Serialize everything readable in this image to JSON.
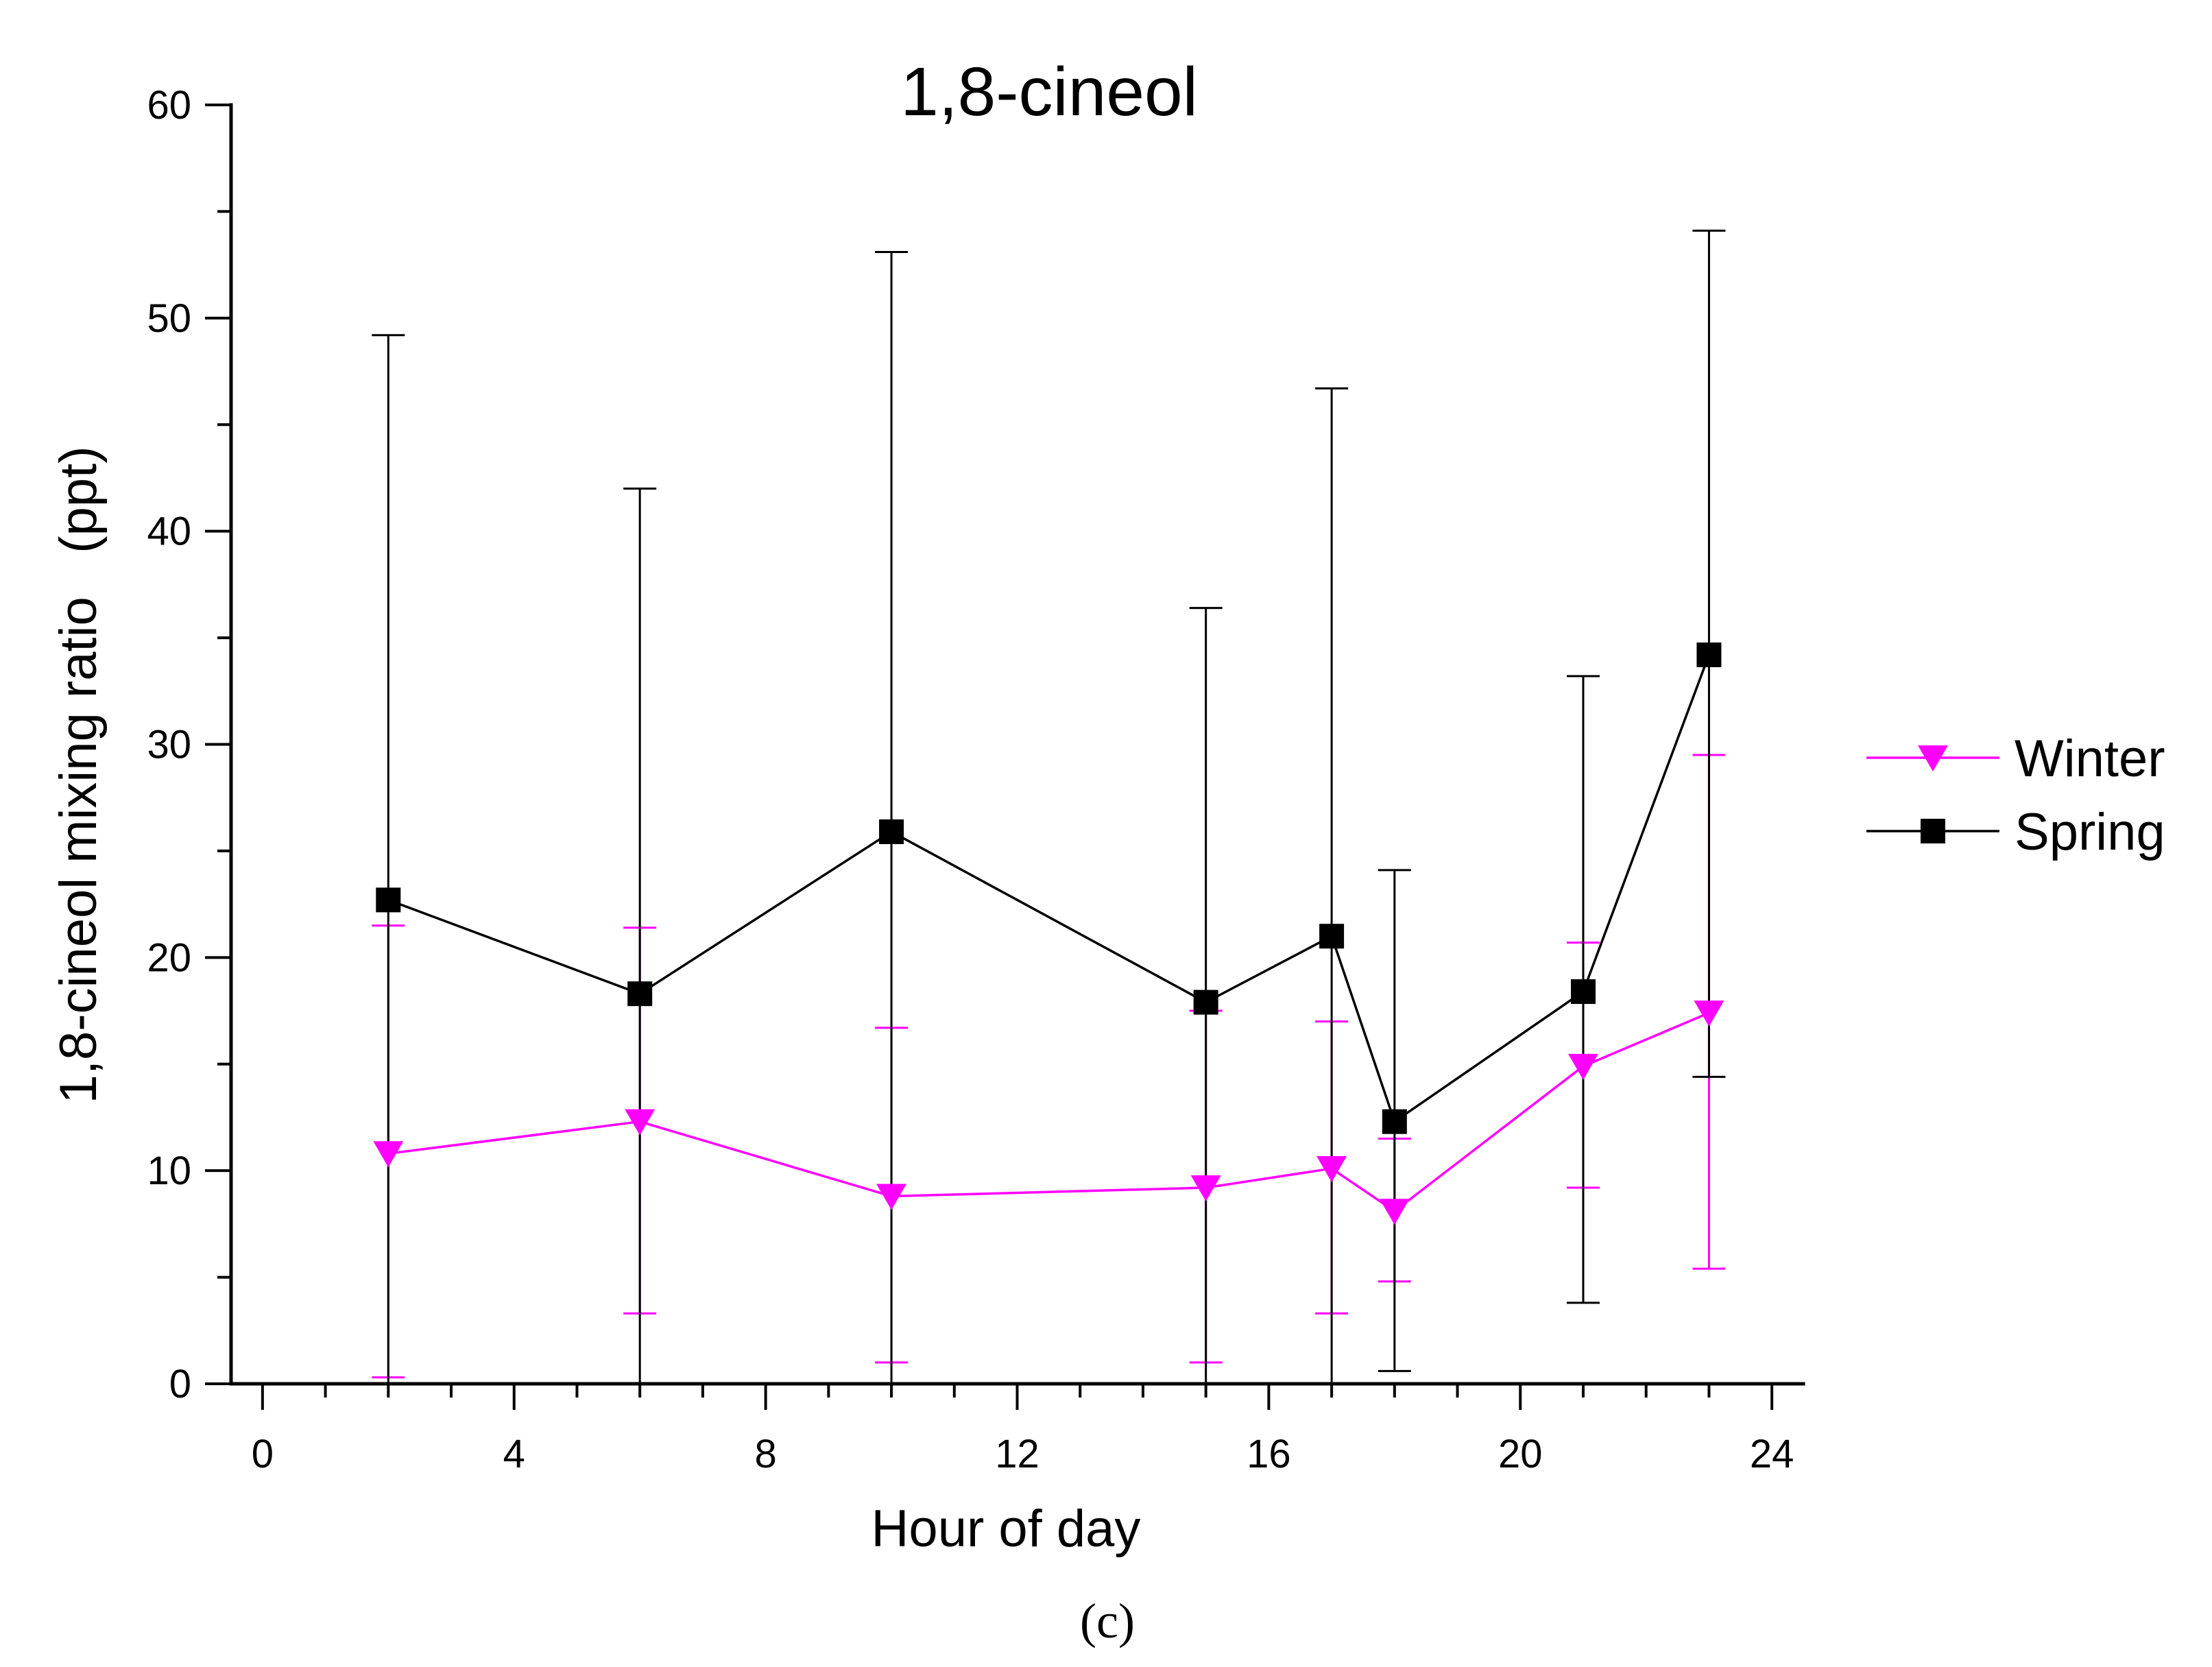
{
  "chart_data": {
    "type": "line",
    "title": "1,8-cineol",
    "xlabel": "Hour of day",
    "ylabel": "1,8-cineol mixing ratio   (ppt)",
    "caption": "(c)",
    "xlim": [
      -0.5,
      24.5
    ],
    "ylim": [
      0,
      60
    ],
    "x_ticks": [
      0,
      4,
      8,
      12,
      16,
      20,
      24
    ],
    "x_tick_labels": [
      "0",
      "4",
      "8",
      "12",
      "16",
      "20",
      "24"
    ],
    "y_ticks": [
      0,
      10,
      20,
      30,
      40,
      50,
      60
    ],
    "y_tick_labels": [
      "0",
      "10",
      "20",
      "30",
      "40",
      "50",
      "60"
    ],
    "legend_position": "right",
    "series": [
      {
        "name": "Winter",
        "color": "#ff00ff",
        "marker": "triangle-down",
        "x": [
          2,
          6,
          10,
          15,
          17,
          18,
          21,
          23
        ],
        "values": [
          10.8,
          12.3,
          8.8,
          9.2,
          10.1,
          8.1,
          14.9,
          17.4
        ],
        "err_low": [
          0.3,
          3.3,
          1.0,
          1.0,
          3.3,
          4.8,
          9.2,
          5.4
        ],
        "err_high": [
          21.5,
          21.4,
          16.7,
          17.5,
          17.0,
          11.5,
          20.7,
          29.5
        ]
      },
      {
        "name": "Spring",
        "color": "#000000",
        "marker": "square",
        "x": [
          2,
          6,
          10,
          15,
          17,
          18,
          21,
          23
        ],
        "values": [
          22.7,
          18.3,
          25.9,
          17.9,
          21.0,
          12.3,
          18.4,
          34.2
        ],
        "err_low": [
          0,
          0,
          0,
          0,
          0,
          0.6,
          3.8,
          14.4
        ],
        "err_high": [
          49.2,
          42.0,
          53.1,
          36.4,
          46.7,
          24.1,
          33.2,
          54.1
        ]
      }
    ]
  }
}
